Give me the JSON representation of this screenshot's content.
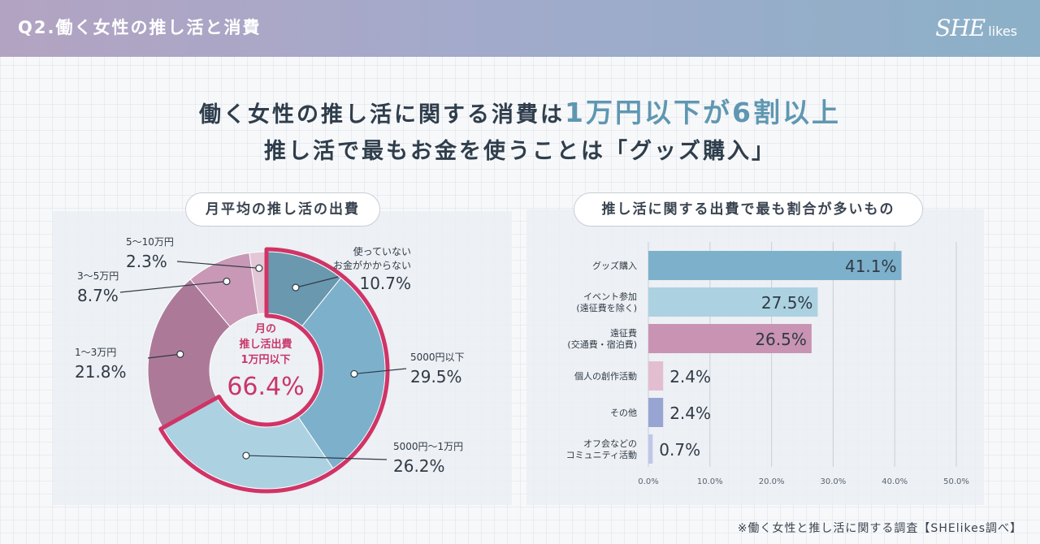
{
  "header": {
    "title": "Q2.働く女性の推し活と消費",
    "logo_main": "SHE",
    "logo_sub": "likes"
  },
  "headline": {
    "line1_pre": "働く女性の推し活に関する消費は",
    "line1_accent": "1万円以下が6割以上",
    "line2": "推し活で最もお金を使うことは「グッズ購入」"
  },
  "footnote": "※働く女性と推し活に関する調査【SHElikes調べ】",
  "colors": {
    "pie": [
      "#6a98ae",
      "#7db0cb",
      "#acd2e2",
      "#ac7a98",
      "#c898b6",
      "#e3c7d6"
    ],
    "highlight": "#d03466",
    "bars": [
      "#7db0cb",
      "#acd2e2",
      "#c993b4",
      "#e3bed0",
      "#98a4d2",
      "#bfc7e8"
    ]
  },
  "chart_data": [
    {
      "type": "pie",
      "title": "月平均の推し活の出費",
      "categories": [
        "使っていない お金がかからない",
        "5000円以下",
        "5000円〜1万円",
        "1〜3万円",
        "3〜5万円",
        "5〜10万円"
      ],
      "labels": [
        {
          "name": "使っていない",
          "name2": "お金がかからない",
          "value": "10.7%"
        },
        {
          "name": "5000円以下",
          "value": "29.5%"
        },
        {
          "name": "5000円〜1万円",
          "value": "26.2%"
        },
        {
          "name": "1〜3万円",
          "value": "21.8%"
        },
        {
          "name": "3〜5万円",
          "value": "8.7%"
        },
        {
          "name": "5〜10万円",
          "value": "2.3%"
        }
      ],
      "values": [
        10.7,
        29.5,
        26.2,
        21.8,
        8.7,
        2.3
      ],
      "highlight_count": 3,
      "center": {
        "line1": "月の",
        "line2": "推し活出費",
        "line3": "1万円以下",
        "value": "66.4%"
      }
    },
    {
      "type": "bar",
      "orientation": "horizontal",
      "title": "推し活に関する出費で最も割合が多いもの",
      "categories": [
        {
          "l1": "グッズ購入",
          "l2": ""
        },
        {
          "l1": "イベント参加",
          "l2": "(遠征費を除く)"
        },
        {
          "l1": "遠征費",
          "l2": "(交通費・宿泊費)"
        },
        {
          "l1": "個人の創作活動",
          "l2": ""
        },
        {
          "l1": "その他",
          "l2": ""
        },
        {
          "l1": "オフ会などの",
          "l2": "コミュニティ活動"
        }
      ],
      "values": [
        41.1,
        27.5,
        26.5,
        2.4,
        2.4,
        0.7
      ],
      "value_labels": [
        "41.1%",
        "27.5%",
        "26.5%",
        "2.4%",
        "2.4%",
        "0.7%"
      ],
      "xlim": [
        0,
        50
      ],
      "ticks": [
        "0.0%",
        "10.0%",
        "20.0%",
        "30.0%",
        "40.0%",
        "50.0%"
      ],
      "tick_values": [
        0,
        10,
        20,
        30,
        40,
        50
      ]
    }
  ]
}
